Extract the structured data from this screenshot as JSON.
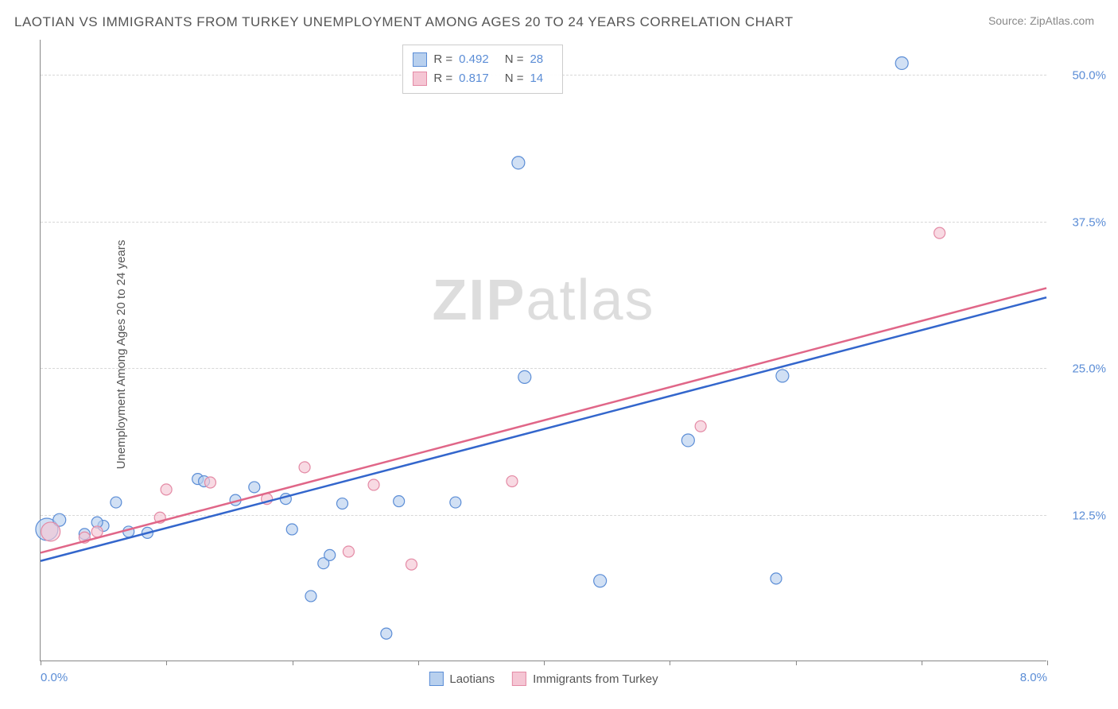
{
  "title": "LAOTIAN VS IMMIGRANTS FROM TURKEY UNEMPLOYMENT AMONG AGES 20 TO 24 YEARS CORRELATION CHART",
  "source": "Source: ZipAtlas.com",
  "y_axis_label": "Unemployment Among Ages 20 to 24 years",
  "watermark_bold": "ZIP",
  "watermark_light": "atlas",
  "chart": {
    "type": "scatter",
    "x_range": [
      0.0,
      8.0
    ],
    "y_range": [
      0.0,
      53.0
    ],
    "x_ticks": [
      0.0,
      1.0,
      2.0,
      3.0,
      4.0,
      5.0,
      6.0,
      7.0,
      8.0
    ],
    "x_tick_labels": {
      "0": "0.0%",
      "8": "8.0%"
    },
    "y_ticks": [
      12.5,
      25.0,
      37.5,
      50.0
    ],
    "y_tick_labels": [
      "12.5%",
      "25.0%",
      "37.5%",
      "50.0%"
    ],
    "grid_color": "#d8d8d8",
    "axis_color": "#888888",
    "background_color": "#ffffff",
    "series": [
      {
        "name": "Laotians",
        "fill": "#b8d0ee",
        "stroke": "#5b8dd6",
        "fill_opacity": 0.65,
        "trend_line_color": "#3366cc",
        "trend_line_width": 2.5,
        "trend": {
          "x1": 0.0,
          "y1": 8.5,
          "x2": 8.0,
          "y2": 31.0
        },
        "points": [
          {
            "x": 0.05,
            "y": 11.2,
            "r": 14
          },
          {
            "x": 0.15,
            "y": 12.0,
            "r": 8
          },
          {
            "x": 0.35,
            "y": 10.8,
            "r": 7
          },
          {
            "x": 0.5,
            "y": 11.5,
            "r": 7
          },
          {
            "x": 0.6,
            "y": 13.5,
            "r": 7
          },
          {
            "x": 0.7,
            "y": 11.0,
            "r": 7
          },
          {
            "x": 0.85,
            "y": 10.9,
            "r": 7
          },
          {
            "x": 1.25,
            "y": 15.5,
            "r": 7
          },
          {
            "x": 1.3,
            "y": 15.3,
            "r": 7
          },
          {
            "x": 1.55,
            "y": 13.7,
            "r": 7
          },
          {
            "x": 1.7,
            "y": 14.8,
            "r": 7
          },
          {
            "x": 1.95,
            "y": 13.8,
            "r": 7
          },
          {
            "x": 2.0,
            "y": 11.2,
            "r": 7
          },
          {
            "x": 2.15,
            "y": 5.5,
            "r": 7
          },
          {
            "x": 2.25,
            "y": 8.3,
            "r": 7
          },
          {
            "x": 2.3,
            "y": 9.0,
            "r": 7
          },
          {
            "x": 2.4,
            "y": 13.4,
            "r": 7
          },
          {
            "x": 2.75,
            "y": 2.3,
            "r": 7
          },
          {
            "x": 2.85,
            "y": 13.6,
            "r": 7
          },
          {
            "x": 3.3,
            "y": 13.5,
            "r": 7
          },
          {
            "x": 3.8,
            "y": 42.5,
            "r": 8
          },
          {
            "x": 3.85,
            "y": 24.2,
            "r": 8
          },
          {
            "x": 4.45,
            "y": 6.8,
            "r": 8
          },
          {
            "x": 5.15,
            "y": 18.8,
            "r": 8
          },
          {
            "x": 5.85,
            "y": 7.0,
            "r": 7
          },
          {
            "x": 5.9,
            "y": 24.3,
            "r": 8
          },
          {
            "x": 6.85,
            "y": 51.0,
            "r": 8
          },
          {
            "x": 0.45,
            "y": 11.8,
            "r": 7
          }
        ]
      },
      {
        "name": "Immigrants from Turkey",
        "fill": "#f5c6d4",
        "stroke": "#e48aa5",
        "fill_opacity": 0.65,
        "trend_line_color": "#e06688",
        "trend_line_width": 2.5,
        "trend": {
          "x1": 0.0,
          "y1": 9.2,
          "x2": 8.0,
          "y2": 31.8
        },
        "points": [
          {
            "x": 0.08,
            "y": 11.0,
            "r": 12
          },
          {
            "x": 0.35,
            "y": 10.5,
            "r": 7
          },
          {
            "x": 0.45,
            "y": 11.0,
            "r": 7
          },
          {
            "x": 0.95,
            "y": 12.2,
            "r": 7
          },
          {
            "x": 1.0,
            "y": 14.6,
            "r": 7
          },
          {
            "x": 1.35,
            "y": 15.2,
            "r": 7
          },
          {
            "x": 1.8,
            "y": 13.8,
            "r": 7
          },
          {
            "x": 2.1,
            "y": 16.5,
            "r": 7
          },
          {
            "x": 2.45,
            "y": 9.3,
            "r": 7
          },
          {
            "x": 2.65,
            "y": 15.0,
            "r": 7
          },
          {
            "x": 2.95,
            "y": 8.2,
            "r": 7
          },
          {
            "x": 3.75,
            "y": 15.3,
            "r": 7
          },
          {
            "x": 5.25,
            "y": 20.0,
            "r": 7
          },
          {
            "x": 7.15,
            "y": 36.5,
            "r": 7
          }
        ]
      }
    ]
  },
  "stats_legend": [
    {
      "series_index": 0,
      "r_label": "R =",
      "r_value": "0.492",
      "n_label": "N =",
      "n_value": "28"
    },
    {
      "series_index": 1,
      "r_label": "R =",
      "r_value": "0.817",
      "n_label": "N =",
      "n_value": "14"
    }
  ],
  "bottom_legend": [
    {
      "series_index": 0,
      "label": "Laotians"
    },
    {
      "series_index": 1,
      "label": "Immigrants from Turkey"
    }
  ]
}
